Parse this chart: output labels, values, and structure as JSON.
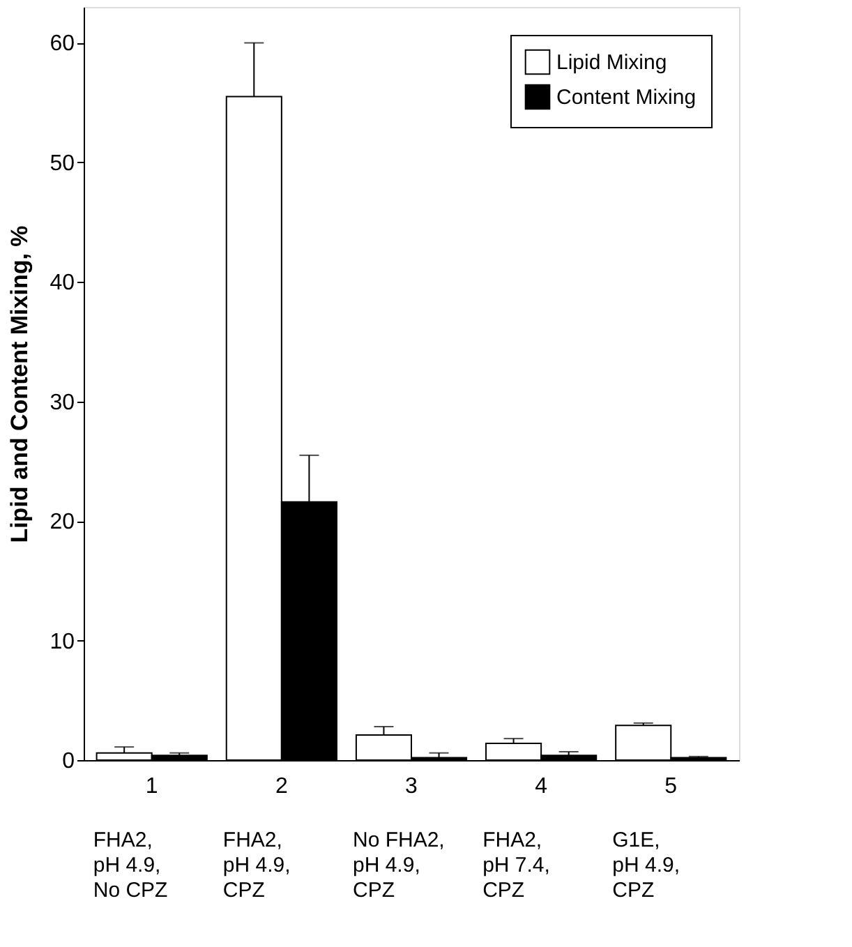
{
  "chart_data": {
    "type": "bar",
    "ylabel": "Lipid and Content Mixing, %",
    "categories": [
      "1",
      "2",
      "3",
      "4",
      "5"
    ],
    "series": [
      {
        "name": "Lipid Mixing",
        "color": "#ffffff",
        "values": [
          0.6,
          55.5,
          2.1,
          1.4,
          2.9
        ],
        "errors": [
          0.5,
          4.5,
          0.7,
          0.4,
          0.2
        ]
      },
      {
        "name": "Content Mixing",
        "color": "#000000",
        "values": [
          0.4,
          21.6,
          0.2,
          0.4,
          0.2
        ],
        "errors": [
          0.2,
          3.9,
          0.4,
          0.3,
          0.1
        ]
      }
    ],
    "ylim": [
      0,
      63
    ],
    "yticks": [
      0,
      10,
      20,
      30,
      40,
      50,
      60
    ],
    "grid": false,
    "legend": "top right",
    "annotations": [
      "FHA2,\npH 4.9,\nNo CPZ",
      "FHA2,\npH 4.9,\nCPZ",
      "No FHA2,\npH 4.9,\nCPZ",
      "FHA2,\npH 7.4,\nCPZ",
      "G1E,\npH 4.9,\nCPZ"
    ]
  }
}
